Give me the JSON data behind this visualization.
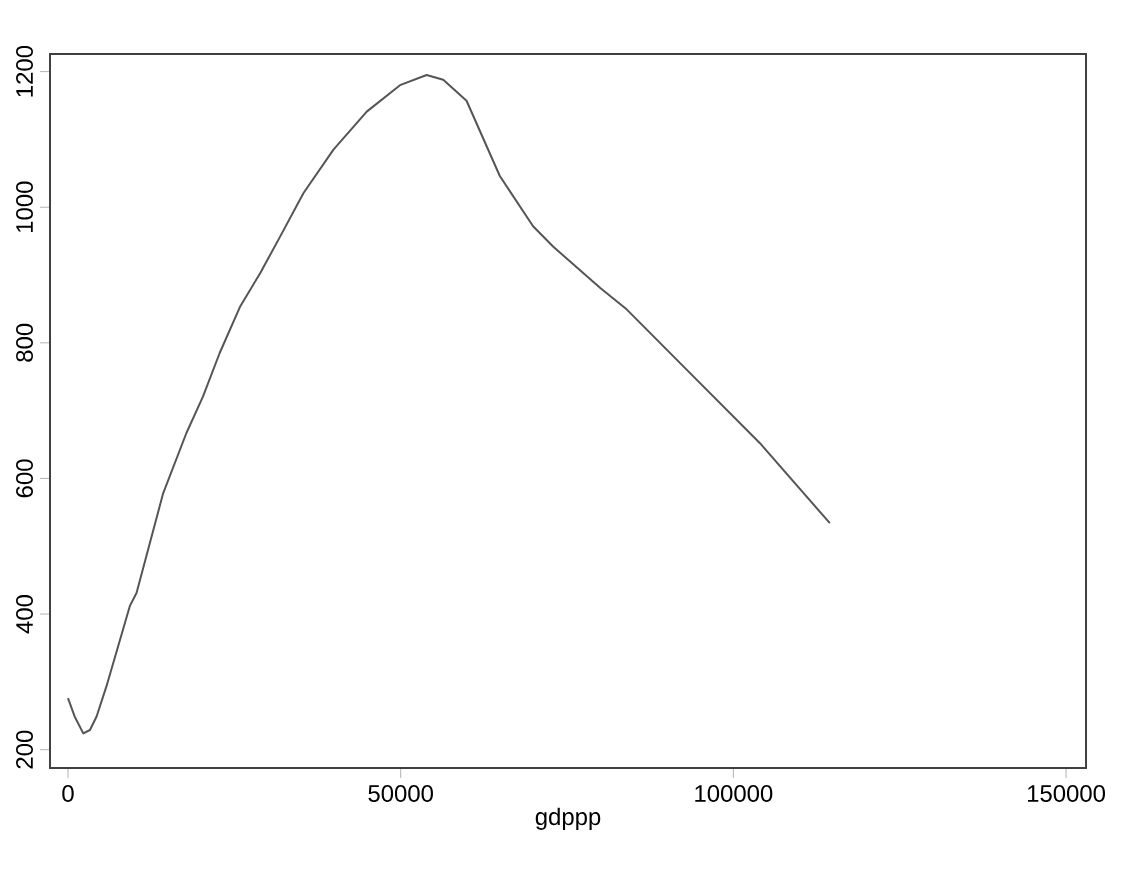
{
  "chart_data": {
    "type": "line",
    "xlabel": "gdppp",
    "x": [
      0,
      1000,
      2300,
      3300,
      4300,
      5800,
      9300,
      10300,
      14300,
      17800,
      20300,
      22800,
      25900,
      28900,
      31900,
      35400,
      39900,
      44900,
      49900,
      53900,
      56400,
      59900,
      64900,
      69900,
      72900,
      80000,
      84000,
      92000,
      104000,
      114500
    ],
    "values": [
      276,
      249,
      224,
      229,
      249,
      294,
      412,
      431,
      578,
      667,
      721,
      785,
      854,
      903,
      957,
      1021,
      1085,
      1141,
      1180,
      1195,
      1188,
      1157,
      1046,
      972,
      942,
      881,
      849,
      770,
      652,
      534
    ],
    "color": "#555555",
    "xlim": [
      -2700,
      153000
    ],
    "ylim": [
      173,
      1226
    ],
    "xticks": [
      0,
      50000,
      100000,
      150000
    ],
    "yticks": [
      200,
      400,
      600,
      800,
      1000,
      1200
    ]
  }
}
